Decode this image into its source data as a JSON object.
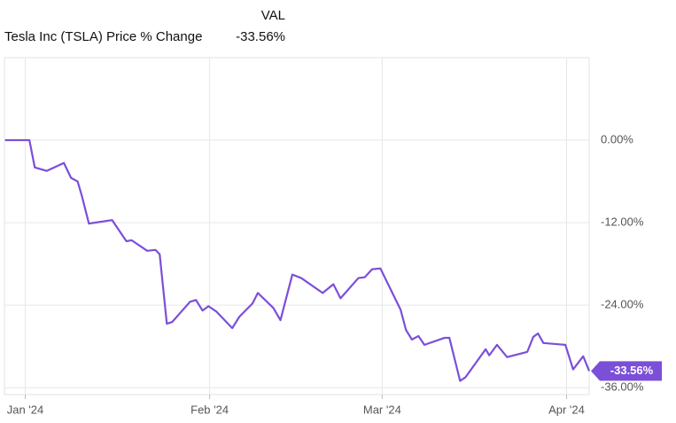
{
  "chart_data": {
    "type": "line",
    "legend_header": "VAL",
    "last_label": "-33.56%",
    "x": [
      -3.4,
      0.7,
      1.6,
      3.6,
      6.5,
      7.7,
      8.8,
      9.5,
      10.7,
      14.6,
      17.0,
      17.9,
      20.5,
      21.9,
      22.6,
      23.8,
      24.7,
      27.7,
      28.7,
      29.8,
      30.8,
      32.1,
      34.8,
      36.0,
      38.2,
      39.1,
      41.7,
      42.9,
      44.9,
      46.4,
      50.0,
      51.8,
      53.0,
      56.0,
      57.1,
      58.3,
      59.7,
      63.1,
      64.0,
      65.0,
      66.1,
      67.1,
      70.5,
      71.3,
      73.1,
      74.0,
      77.4,
      78.0,
      79.3,
      81.0,
      84.4,
      85.4,
      86.2,
      87.1,
      90.8,
      92.1,
      93.8,
      94.8
    ],
    "series": [
      {
        "name": "Tesla Inc (TSLA) Price % Change",
        "color": "#7b4fd8",
        "values": [
          0,
          0,
          -3.96,
          -4.47,
          -3.32,
          -5.49,
          -6.0,
          -8.05,
          -12.13,
          -11.62,
          -14.69,
          -14.56,
          -16.09,
          -15.96,
          -16.6,
          -26.69,
          -26.44,
          -23.5,
          -23.24,
          -24.78,
          -24.14,
          -24.9,
          -27.33,
          -25.67,
          -23.75,
          -22.22,
          -24.39,
          -26.18,
          -19.54,
          -20.05,
          -22.22,
          -20.95,
          -22.99,
          -20.05,
          -19.92,
          -18.77,
          -18.65,
          -24.65,
          -27.59,
          -28.99,
          -28.48,
          -29.76,
          -28.74,
          -28.74,
          -35.0,
          -34.48,
          -30.4,
          -31.29,
          -29.76,
          -31.55,
          -30.78,
          -28.61,
          -28.1,
          -29.5,
          -29.76,
          -33.33,
          -31.42,
          -33.56
        ]
      }
    ],
    "xlim": [
      -3.5,
      94.8
    ],
    "xticks": [
      {
        "value": 0,
        "label": "Jan '24"
      },
      {
        "value": 31,
        "label": "Feb '24"
      },
      {
        "value": 60,
        "label": "Mar '24"
      },
      {
        "value": 91,
        "label": "Apr '24"
      }
    ],
    "ylim": [
      -37,
      12
    ],
    "yticks": [
      {
        "value": 0,
        "label": "0.00%"
      },
      {
        "value": -12,
        "label": "-12.00%"
      },
      {
        "value": -24,
        "label": "-24.00%"
      },
      {
        "value": -36,
        "label": "-36.00%"
      }
    ],
    "grid": true
  }
}
